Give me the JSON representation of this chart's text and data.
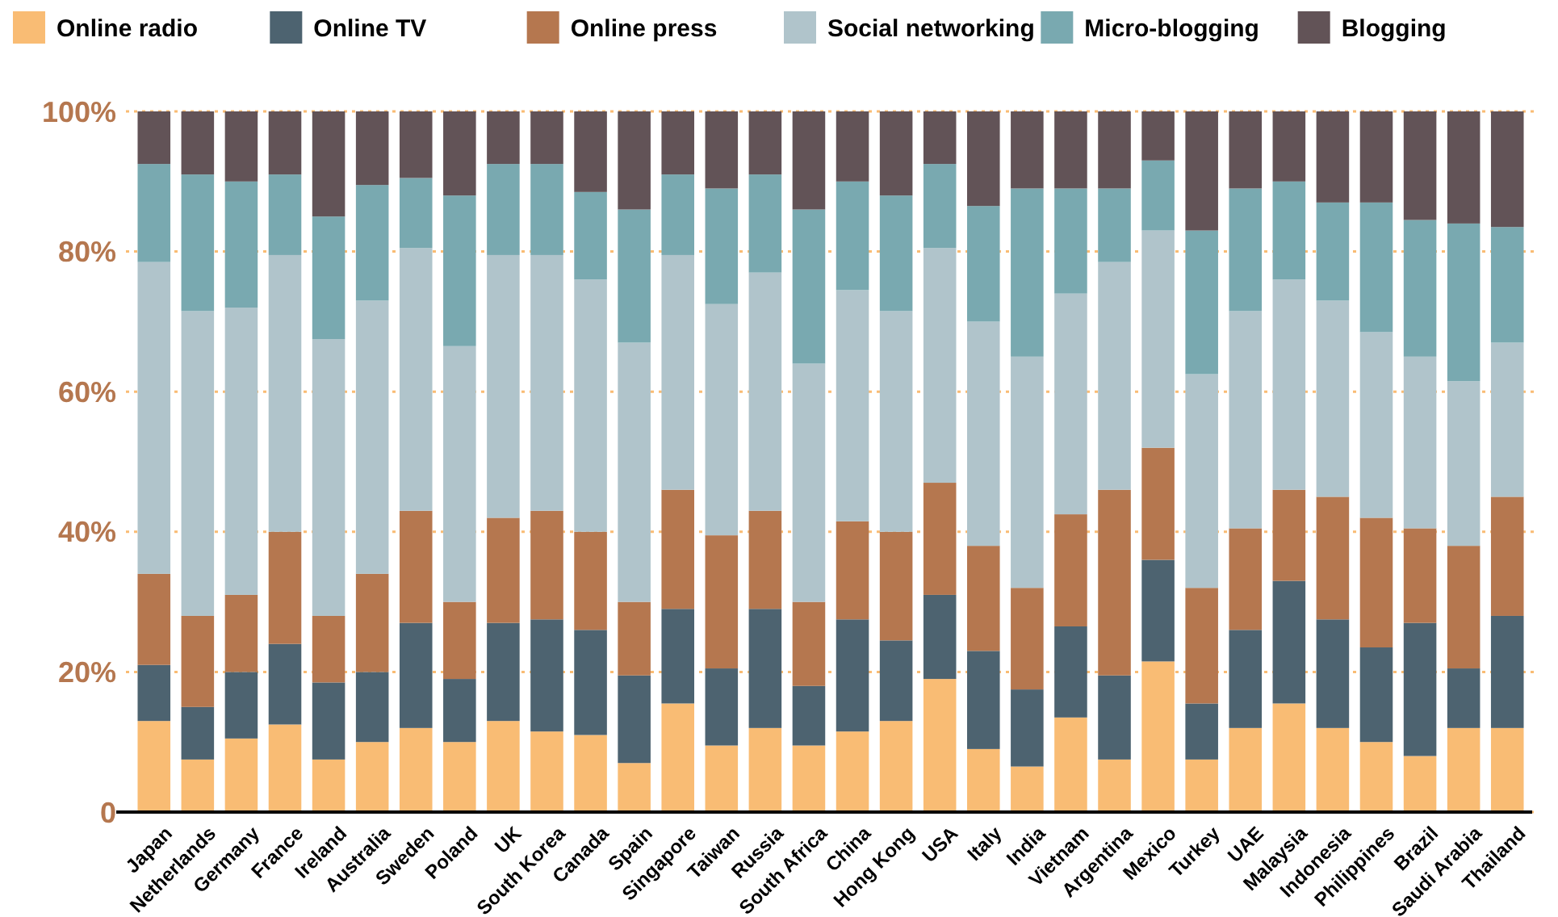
{
  "chart_data": {
    "type": "bar",
    "stacked": true,
    "legend": "top",
    "grid": "y",
    "line_style": "dotted",
    "categories": [
      "Japan",
      "Netherlands",
      "Germany",
      "France",
      "Ireland",
      "Australia",
      "Sweden",
      "Poland",
      "UK",
      "South Korea",
      "Canada",
      "Spain",
      "Singapore",
      "Taiwan",
      "Russia",
      "South Africa",
      "China",
      "Hong Kong",
      "USA",
      "Italy",
      "India",
      "Vietnam",
      "Argentina",
      "Mexico",
      "Turkey",
      "UAE",
      "Malaysia",
      "Indonesia",
      "Philippines",
      "Brazil",
      "Saudi Arabia",
      "Thailand"
    ],
    "ylim": [
      0,
      100
    ],
    "yticks": [
      0,
      {
        "value": 20,
        "label": "20%"
      },
      {
        "value": 40,
        "label": "40%"
      },
      {
        "value": 60,
        "label": "60%"
      },
      {
        "value": 80,
        "label": "80%"
      },
      {
        "value": 100,
        "label": "100%"
      }
    ],
    "series": [
      {
        "name": "Online radio",
        "color": "#f9bc74",
        "values": [
          13,
          7.5,
          10.5,
          12.5,
          7.5,
          10,
          12,
          10,
          13,
          11.5,
          11,
          7,
          15.5,
          9.5,
          12,
          9.5,
          11.5,
          13,
          19,
          9,
          6.5,
          13.5,
          7.5,
          21.5,
          7.5,
          12,
          15.5,
          12,
          10,
          8,
          12,
          12
        ]
      },
      {
        "name": "Online TV",
        "color": "#4d6370",
        "values": [
          8,
          7.5,
          9.5,
          11.5,
          11,
          10,
          15,
          9,
          14,
          16,
          15,
          12.5,
          13.5,
          11,
          17,
          8.5,
          16,
          11.5,
          12,
          14,
          11,
          13,
          12,
          14.5,
          8,
          14,
          17.5,
          15.5,
          13.5,
          19,
          8.5,
          16
        ]
      },
      {
        "name": "Online press",
        "color": "#b5774f",
        "values": [
          13,
          13,
          11,
          16,
          9.5,
          14,
          16,
          11,
          15,
          15.5,
          14,
          10.5,
          17,
          19,
          14,
          12,
          14,
          15.5,
          16,
          15,
          14.5,
          16,
          26.5,
          16,
          16.5,
          14.5,
          13,
          17.5,
          18.5,
          13.5,
          17.5,
          17
        ]
      },
      {
        "name": "Social networking",
        "color": "#b0c4cb",
        "values": [
          44.5,
          43.5,
          41,
          39.5,
          39.5,
          39,
          37.5,
          36.5,
          37.5,
          36.5,
          36,
          37,
          33.5,
          33,
          34,
          34,
          33,
          31.5,
          33.5,
          32,
          33,
          31.5,
          32.5,
          31,
          30.5,
          31,
          30,
          28,
          26.5,
          24.5,
          23.5,
          22
        ]
      },
      {
        "name": "Micro-blogging",
        "color": "#79a9b0",
        "values": [
          14,
          19.5,
          18,
          11.5,
          17.5,
          16.5,
          10,
          21.5,
          13,
          13,
          12.5,
          19,
          11.5,
          16.5,
          14,
          22,
          15.5,
          16.5,
          12,
          16.5,
          24,
          15,
          10.5,
          10,
          20.5,
          17.5,
          14,
          14,
          18.5,
          19.5,
          22.5,
          16.5
        ]
      },
      {
        "name": "Blogging",
        "color": "#625357",
        "values": [
          7.5,
          9,
          10,
          9,
          15,
          10.5,
          9.5,
          12,
          7.5,
          7.5,
          11.5,
          14,
          9,
          11,
          9,
          14,
          10,
          12,
          7.5,
          13.5,
          11,
          11,
          11,
          7,
          17,
          11,
          10,
          13,
          13,
          15.5,
          16,
          16.5
        ]
      }
    ]
  }
}
